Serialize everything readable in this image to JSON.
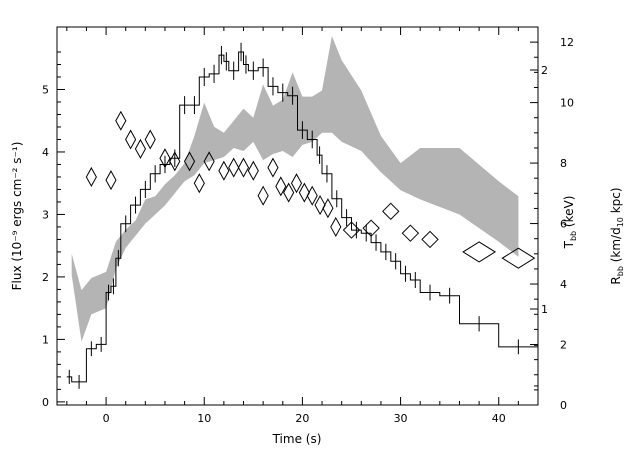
{
  "chart_data": {
    "type": "line",
    "xlabel": "Time (s)",
    "ylabel_left": "Flux (10⁻⁹ ergs cm⁻² s⁻¹)",
    "ylabel_right_inner": "T_bb (keV)",
    "ylabel_right_outer": "R_bb (km/d_10 kpc)",
    "xlim": [
      -5,
      44
    ],
    "ylim_flux": [
      -0.05,
      6.0
    ],
    "ylim_radius": [
      0,
      12.5
    ],
    "temperature_axis": "log",
    "x_ticks": [
      "0",
      "10",
      "20",
      "30",
      "40"
    ],
    "y_ticks_left": [
      "0",
      "1",
      "2",
      "3",
      "4",
      "5"
    ],
    "y_ticks_right_outer": [
      "0",
      "2",
      "4",
      "6",
      "8",
      "10",
      "12"
    ],
    "y_ticks_right_inner": [
      {
        "label": "1",
        "value": 1
      },
      {
        "label": "2",
        "value": 2
      }
    ],
    "series": [
      {
        "kind": "flux_histogram",
        "bins": [
          [
            -4,
            -3.5,
            0.4
          ],
          [
            -3.5,
            -2,
            0.32
          ],
          [
            -2,
            -1,
            0.85
          ],
          [
            -1,
            0,
            0.92
          ],
          [
            0,
            0.5,
            1.75
          ],
          [
            0.5,
            1,
            1.85
          ],
          [
            1,
            1.5,
            2.3
          ],
          [
            1.5,
            2.5,
            2.85
          ],
          [
            2.5,
            3.5,
            3.15
          ],
          [
            3.5,
            4.5,
            3.4
          ],
          [
            4.5,
            5.5,
            3.65
          ],
          [
            5.5,
            6.5,
            3.8
          ],
          [
            6.5,
            7.5,
            3.9
          ],
          [
            7.5,
            8.5,
            4.75
          ],
          [
            8.5,
            9.5,
            4.75
          ],
          [
            9.5,
            10.5,
            5.2
          ],
          [
            10.5,
            11.5,
            5.25
          ],
          [
            11.5,
            12,
            5.55
          ],
          [
            12,
            12.5,
            5.45
          ],
          [
            12.5,
            13.5,
            5.3
          ],
          [
            13.5,
            14,
            5.6
          ],
          [
            14,
            14.5,
            5.4
          ],
          [
            14.5,
            15.5,
            5.3
          ],
          [
            15.5,
            16.5,
            5.35
          ],
          [
            16.5,
            17.5,
            5.05
          ],
          [
            17.5,
            18.5,
            4.95
          ],
          [
            18.5,
            19.5,
            4.9
          ],
          [
            19.5,
            20.5,
            4.35
          ],
          [
            20.5,
            21.5,
            4.2
          ],
          [
            21.5,
            22,
            3.95
          ],
          [
            22,
            23,
            3.65
          ],
          [
            23,
            24,
            3.25
          ],
          [
            24,
            25,
            2.95
          ],
          [
            25,
            26,
            2.75
          ],
          [
            26,
            27,
            2.7
          ],
          [
            27,
            28,
            2.55
          ],
          [
            28,
            29,
            2.4
          ],
          [
            29,
            30,
            2.25
          ],
          [
            30,
            31,
            2.05
          ],
          [
            31,
            32,
            1.95
          ],
          [
            32,
            34,
            1.75
          ],
          [
            34,
            36,
            1.7
          ],
          [
            36,
            40,
            1.25
          ],
          [
            40,
            44,
            0.88
          ]
        ]
      },
      {
        "kind": "temperature_diamonds",
        "points": [
          [
            1.5,
            4.5
          ],
          [
            2.5,
            4.2
          ],
          [
            3.5,
            4.05
          ],
          [
            4.5,
            4.2
          ],
          [
            -1.5,
            3.6
          ],
          [
            0.5,
            3.55
          ],
          [
            6,
            3.9
          ],
          [
            7,
            3.85
          ],
          [
            8.5,
            3.85
          ],
          [
            10.5,
            3.85
          ],
          [
            12,
            3.7
          ],
          [
            13,
            3.75
          ],
          [
            14,
            3.75
          ],
          [
            15,
            3.7
          ],
          [
            9.5,
            3.5
          ],
          [
            16,
            3.3
          ],
          [
            17,
            3.75
          ],
          [
            17.8,
            3.45
          ],
          [
            18.6,
            3.35
          ],
          [
            19.4,
            3.5
          ],
          [
            20.2,
            3.35
          ],
          [
            21,
            3.3
          ],
          [
            21.8,
            3.15
          ],
          [
            22.6,
            3.1
          ],
          [
            23.4,
            2.8
          ],
          [
            25,
            2.75
          ],
          [
            27,
            2.78
          ],
          [
            29,
            3.05
          ],
          [
            31,
            2.7
          ],
          [
            33,
            2.6
          ],
          [
            38,
            2.4
          ],
          [
            42,
            2.3
          ]
        ],
        "unit": "flux-axis units"
      },
      {
        "kind": "radius_band",
        "upper": [
          [
            -3.5,
            5.0
          ],
          [
            -2.5,
            3.8
          ],
          [
            -1.5,
            4.2
          ],
          [
            0,
            4.4
          ],
          [
            1,
            5.4
          ],
          [
            2,
            5.8
          ],
          [
            3,
            6.1
          ],
          [
            4,
            6.8
          ],
          [
            5,
            6.9
          ],
          [
            6,
            7.3
          ],
          [
            7,
            7.6
          ],
          [
            8,
            8.0
          ],
          [
            9,
            8.9
          ],
          [
            10,
            10.0
          ],
          [
            11,
            9.2
          ],
          [
            12,
            9.0
          ],
          [
            13,
            9.4
          ],
          [
            14,
            9.8
          ],
          [
            15,
            9.5
          ],
          [
            16,
            10.6
          ],
          [
            17,
            9.9
          ],
          [
            18,
            10.1
          ],
          [
            19,
            11.0
          ],
          [
            20,
            10.2
          ],
          [
            21,
            10.2
          ],
          [
            22,
            10.4
          ],
          [
            23,
            12.2
          ],
          [
            24,
            11.4
          ],
          [
            26,
            10.4
          ],
          [
            28,
            8.9
          ],
          [
            30,
            8.0
          ],
          [
            32,
            8.5
          ],
          [
            36,
            8.5
          ],
          [
            40,
            7.4
          ],
          [
            42,
            6.9
          ]
        ],
        "lower": [
          [
            -3.5,
            4.3
          ],
          [
            -2.5,
            2.1
          ],
          [
            -1.5,
            3.0
          ],
          [
            0,
            3.2
          ],
          [
            1,
            4.5
          ],
          [
            2,
            5.2
          ],
          [
            3,
            5.6
          ],
          [
            4,
            6.0
          ],
          [
            5,
            6.3
          ],
          [
            6,
            6.6
          ],
          [
            7,
            7.0
          ],
          [
            8,
            7.4
          ],
          [
            9,
            7.6
          ],
          [
            10,
            8.0
          ],
          [
            11,
            8.1
          ],
          [
            12,
            8.2
          ],
          [
            13,
            8.5
          ],
          [
            14,
            8.4
          ],
          [
            15,
            8.7
          ],
          [
            16,
            8.1
          ],
          [
            17,
            8.3
          ],
          [
            18,
            8.4
          ],
          [
            19,
            8.2
          ],
          [
            20,
            8.6
          ],
          [
            21,
            8.7
          ],
          [
            22,
            9.0
          ],
          [
            23,
            9.0
          ],
          [
            24,
            8.7
          ],
          [
            26,
            8.4
          ],
          [
            28,
            7.7
          ],
          [
            30,
            7.1
          ],
          [
            32,
            6.8
          ],
          [
            36,
            6.3
          ],
          [
            40,
            5.4
          ],
          [
            42,
            4.9
          ]
        ],
        "unit": "km/d_10 kpc",
        "color": "#b4b4b4"
      }
    ],
    "grid": false
  }
}
